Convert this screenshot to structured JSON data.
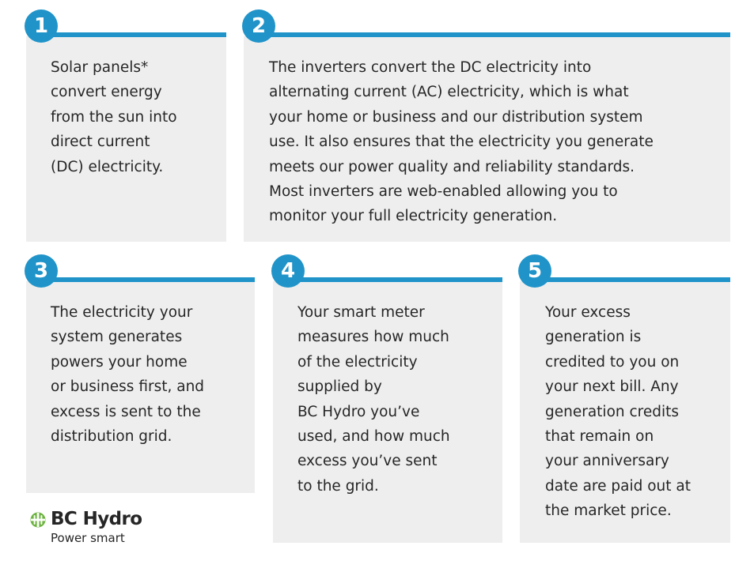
{
  "colors": {
    "accent": "#2094c9",
    "card_background": "#eeeeee",
    "text": "#262626"
  },
  "steps": [
    {
      "number": "1",
      "text": "Solar panels*\nconvert energy\nfrom the sun into\ndirect current\n(DC) electricity."
    },
    {
      "number": "2",
      "text": "The inverters convert the DC electricity into\nalternating current (AC) electricity, which is what\nyour home or business and our distribution system\nuse. It also ensures that the electricity you generate\nmeets our power quality and reliability standards.\nMost inverters are web-enabled allowing you to\nmonitor your full electricity generation."
    },
    {
      "number": "3",
      "text": "The electricity your\nsystem generates\npowers your home\nor business first, and\nexcess is sent to the\ndistribution grid."
    },
    {
      "number": "4",
      "text": "Your smart meter\nmeasures how much\nof the electricity\nsupplied by\nBC Hydro you’ve\nused, and how much\nexcess you’ve sent\nto the grid."
    },
    {
      "number": "5",
      "text": "Your excess\ngeneration is\ncredited to you on\nyour next bill. Any\ngeneration credits\nthat remain on\nyour anniversary\ndate are paid out at\nthe market price."
    }
  ],
  "logo": {
    "name": "BC Hydro",
    "tagline": "Power smart",
    "icon": "bc-hydro-logo-icon"
  }
}
